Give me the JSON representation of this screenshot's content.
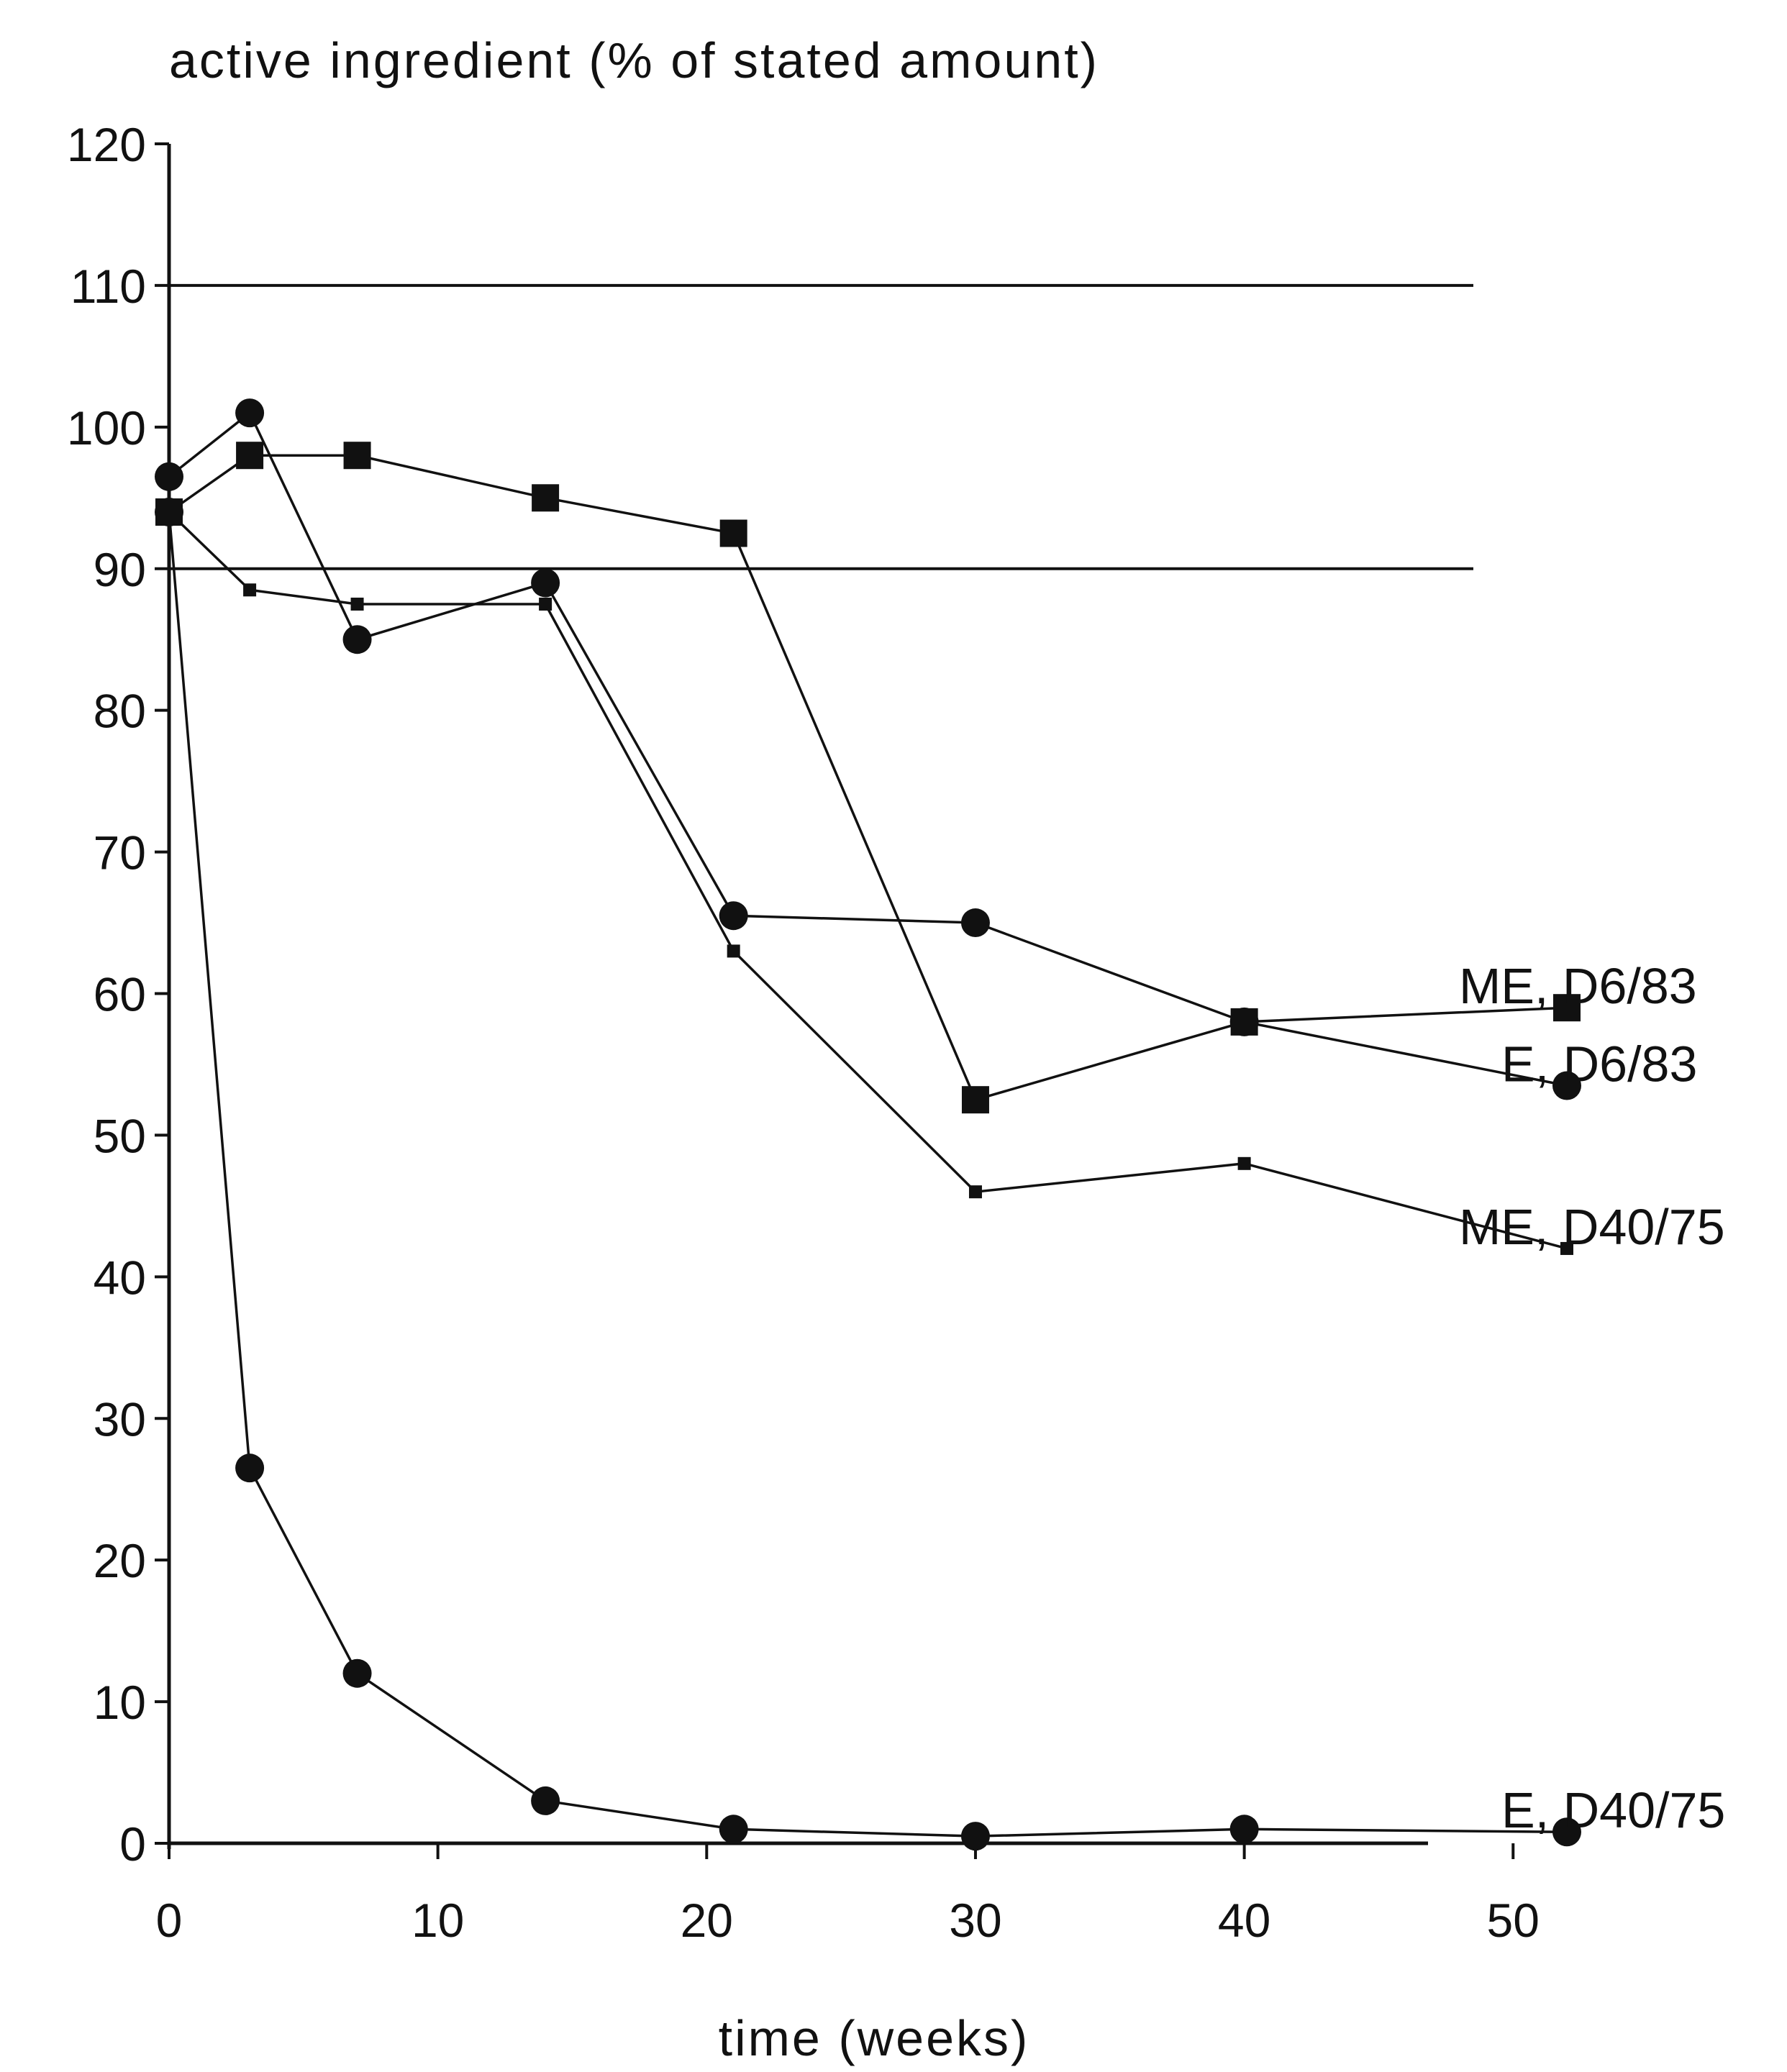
{
  "chart_data": {
    "type": "line",
    "ylabel": "active ingredient (% of stated amount)",
    "xlabel": "time (weeks)",
    "xlim": [
      0,
      52
    ],
    "ylim": [
      0,
      120
    ],
    "x_ticks": [
      0,
      10,
      20,
      30,
      40,
      50
    ],
    "y_ticks": [
      0,
      10,
      20,
      30,
      40,
      50,
      60,
      70,
      80,
      90,
      100,
      110,
      120
    ],
    "reference_lines": [
      110,
      90
    ],
    "grid": false,
    "legend": "labels at right end of each series",
    "series": [
      {
        "name": "ME, D6/83",
        "marker": "square-large",
        "x": [
          0,
          3,
          7,
          14,
          21,
          30,
          40,
          52
        ],
        "y": [
          94,
          98,
          98,
          95,
          92.5,
          52.5,
          58,
          59
        ]
      },
      {
        "name": "E, D6/83",
        "marker": "circle",
        "x": [
          0,
          3,
          7,
          14,
          21,
          30,
          40,
          52
        ],
        "y": [
          96.5,
          101,
          85,
          89,
          65.5,
          65,
          58,
          53.5
        ]
      },
      {
        "name": "ME, D40/75",
        "marker": "square-small",
        "x": [
          0,
          3,
          7,
          14,
          21,
          30,
          40,
          52
        ],
        "y": [
          94,
          88.5,
          87.5,
          87.5,
          63,
          46,
          48,
          42
        ]
      },
      {
        "name": "E, D40/75",
        "marker": "circle",
        "x": [
          0,
          3,
          7,
          14,
          21,
          30,
          40,
          52
        ],
        "y": [
          94,
          26.5,
          12,
          3,
          1,
          0.5,
          1,
          0.8
        ]
      }
    ]
  }
}
